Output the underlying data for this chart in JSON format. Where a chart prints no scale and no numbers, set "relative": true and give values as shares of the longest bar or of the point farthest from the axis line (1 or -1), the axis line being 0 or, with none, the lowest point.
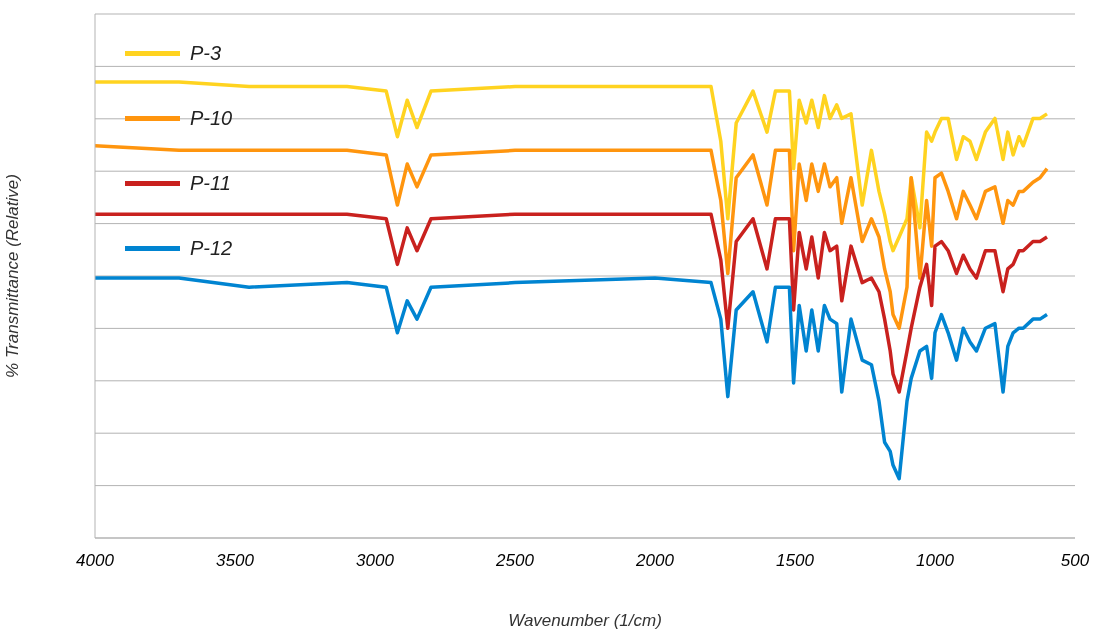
{
  "chart_data": {
    "type": "line",
    "relative": true,
    "xlabel": "Wavenumber (1/cm)",
    "ylabel": "% Transmittance (Relative)",
    "xlim": [
      4000,
      500
    ],
    "xticks": [
      4000,
      3500,
      3000,
      2500,
      2000,
      1500,
      1000,
      500
    ],
    "grid": "y",
    "legend": "top left",
    "x": [
      4000,
      3700,
      3450,
      3100,
      2960,
      2920,
      2885,
      2850,
      2800,
      2500,
      2000,
      1800,
      1765,
      1740,
      1710,
      1650,
      1600,
      1570,
      1520,
      1505,
      1485,
      1460,
      1440,
      1417,
      1395,
      1375,
      1351,
      1333,
      1300,
      1260,
      1227,
      1200,
      1180,
      1160,
      1150,
      1128,
      1100,
      1085,
      1054,
      1030,
      1012,
      1000,
      977,
      953,
      923,
      899,
      875,
      852,
      820,
      786,
      757,
      740,
      721,
      700,
      685,
      650,
      625,
      600
    ],
    "series": [
      {
        "name": "P-3",
        "color": "#ffd320",
        "values": [
          1.0,
          1.0,
          0.99,
          0.99,
          0.98,
          0.88,
          0.96,
          0.9,
          0.98,
          0.99,
          0.99,
          0.99,
          0.87,
          0.7,
          0.91,
          0.98,
          0.89,
          0.98,
          0.98,
          0.81,
          0.96,
          0.91,
          0.96,
          0.9,
          0.97,
          0.92,
          0.95,
          0.92,
          0.93,
          0.73,
          0.85,
          0.76,
          0.71,
          0.65,
          0.63,
          0.66,
          0.7,
          0.79,
          0.68,
          0.89,
          0.87,
          0.89,
          0.92,
          0.92,
          0.83,
          0.88,
          0.87,
          0.83,
          0.89,
          0.92,
          0.83,
          0.89,
          0.84,
          0.88,
          0.86,
          0.92,
          0.92,
          0.93
        ]
      },
      {
        "name": "P-10",
        "color": "#ff950e",
        "values": [
          0.86,
          0.85,
          0.85,
          0.85,
          0.84,
          0.73,
          0.82,
          0.77,
          0.84,
          0.85,
          0.85,
          0.85,
          0.74,
          0.58,
          0.79,
          0.84,
          0.73,
          0.85,
          0.85,
          0.63,
          0.82,
          0.74,
          0.82,
          0.76,
          0.82,
          0.77,
          0.79,
          0.69,
          0.79,
          0.65,
          0.7,
          0.66,
          0.59,
          0.54,
          0.49,
          0.46,
          0.55,
          0.79,
          0.57,
          0.74,
          0.64,
          0.79,
          0.8,
          0.76,
          0.7,
          0.76,
          0.73,
          0.7,
          0.76,
          0.77,
          0.69,
          0.74,
          0.73,
          0.76,
          0.76,
          0.78,
          0.79,
          0.81
        ]
      },
      {
        "name": "P-11",
        "color": "#c9211e",
        "values": [
          0.71,
          0.71,
          0.71,
          0.71,
          0.7,
          0.6,
          0.68,
          0.63,
          0.7,
          0.71,
          0.71,
          0.71,
          0.61,
          0.46,
          0.65,
          0.7,
          0.59,
          0.7,
          0.7,
          0.5,
          0.67,
          0.59,
          0.66,
          0.57,
          0.67,
          0.63,
          0.64,
          0.52,
          0.64,
          0.56,
          0.57,
          0.54,
          0.48,
          0.41,
          0.36,
          0.32,
          0.41,
          0.46,
          0.55,
          0.6,
          0.51,
          0.64,
          0.65,
          0.63,
          0.58,
          0.62,
          0.59,
          0.57,
          0.63,
          0.63,
          0.54,
          0.59,
          0.6,
          0.63,
          0.63,
          0.65,
          0.65,
          0.66
        ]
      },
      {
        "name": "P-12",
        "color": "#0084d1",
        "values": [
          0.57,
          0.57,
          0.55,
          0.56,
          0.55,
          0.45,
          0.52,
          0.48,
          0.55,
          0.56,
          0.57,
          0.56,
          0.48,
          0.31,
          0.5,
          0.54,
          0.43,
          0.55,
          0.55,
          0.34,
          0.51,
          0.41,
          0.5,
          0.41,
          0.51,
          0.48,
          0.47,
          0.32,
          0.48,
          0.39,
          0.38,
          0.3,
          0.21,
          0.19,
          0.16,
          0.13,
          0.3,
          0.35,
          0.41,
          0.42,
          0.35,
          0.45,
          0.49,
          0.45,
          0.39,
          0.46,
          0.43,
          0.41,
          0.46,
          0.47,
          0.32,
          0.42,
          0.45,
          0.46,
          0.46,
          0.48,
          0.48,
          0.49
        ]
      }
    ]
  }
}
